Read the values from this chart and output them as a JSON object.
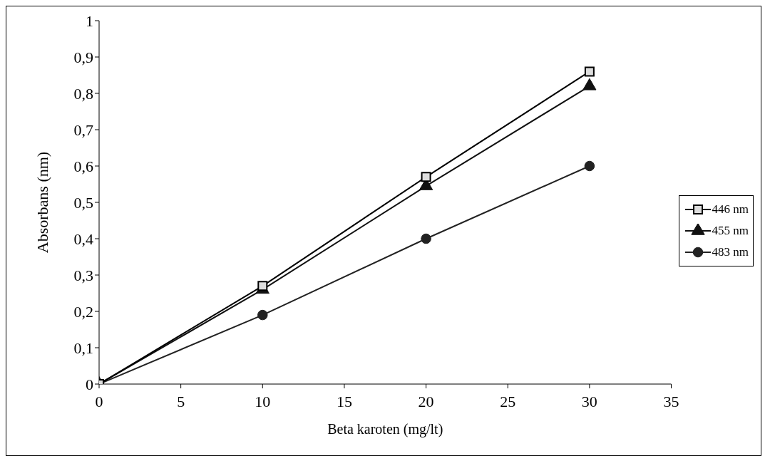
{
  "chart_data": {
    "type": "line",
    "xlabel": "Beta karoten (mg/lt)",
    "ylabel": "Absorbans (nm)",
    "x": [
      0,
      10,
      20,
      30
    ],
    "series": [
      {
        "name": "446 nm",
        "color": "#000000",
        "marker": "square",
        "values": [
          0,
          0.27,
          0.57,
          0.86
        ]
      },
      {
        "name": "455 nm",
        "color": "#111111",
        "marker": "triangle",
        "values": [
          0,
          0.26,
          0.545,
          0.82
        ]
      },
      {
        "name": "483 nm",
        "color": "#222222",
        "marker": "circle",
        "values": [
          0,
          0.19,
          0.4,
          0.6
        ]
      }
    ],
    "xlim": [
      0,
      35
    ],
    "xticks": [
      0,
      5,
      10,
      15,
      20,
      25,
      30,
      35
    ],
    "ylim": [
      0,
      1
    ],
    "yticks": [
      0,
      {
        "value": 0.1,
        "label": "0,1"
      },
      {
        "value": 0.2,
        "label": "0,2"
      },
      {
        "value": 0.3,
        "label": "0,3"
      },
      {
        "value": 0.4,
        "label": "0,4"
      },
      {
        "value": 0.5,
        "label": "0,5"
      },
      {
        "value": 0.6,
        "label": "0,6"
      },
      {
        "value": 0.7,
        "label": "0,7"
      },
      {
        "value": 0.8,
        "label": "0,8"
      },
      {
        "value": 0.9,
        "label": "0,9"
      },
      1
    ],
    "grid": false,
    "legend": "right",
    "line_style": "solid"
  }
}
